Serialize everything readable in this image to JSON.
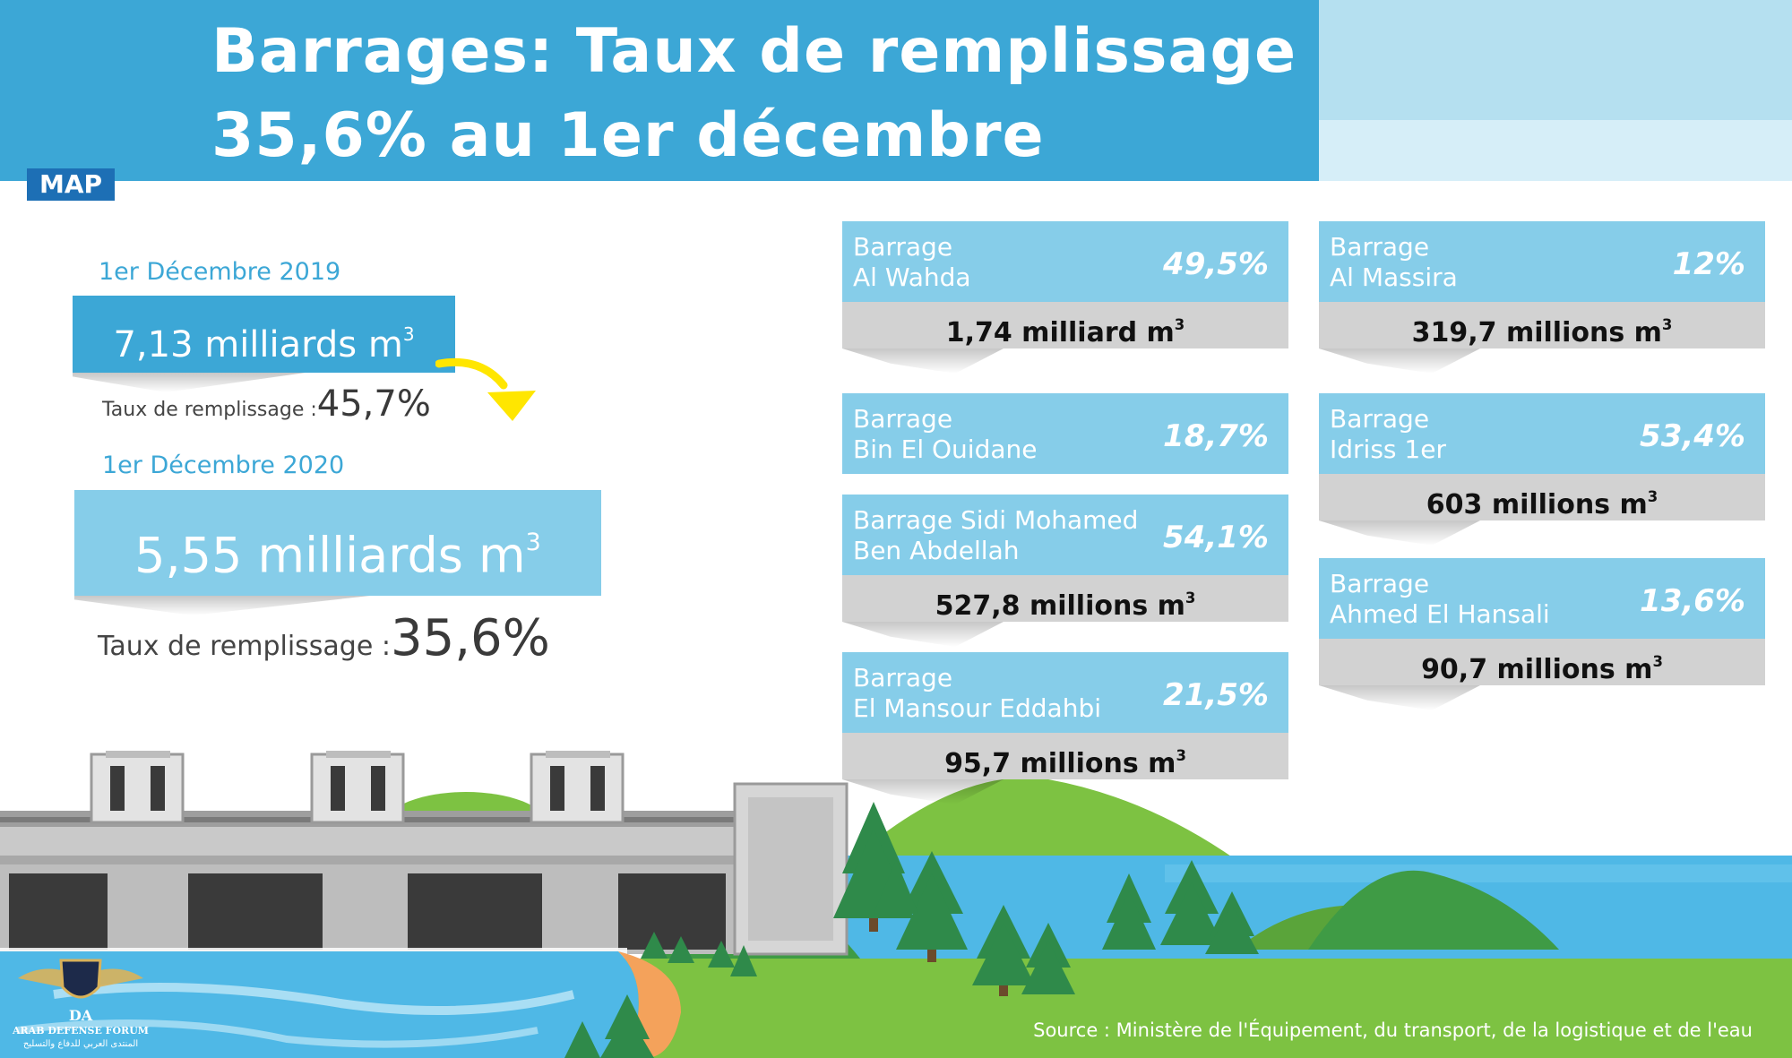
{
  "header": {
    "title_line1": "Barrages: Taux de remplissage",
    "title_line2": "35,6% au 1er décembre",
    "logo": "MAP"
  },
  "comparison": {
    "y2019": {
      "date": "1er Décembre 2019",
      "volume": "7,13 milliards m",
      "volume_exp": "3",
      "rate_label": "Taux de remplissage :",
      "rate_value": "45,7%"
    },
    "y2020": {
      "date": "1er Décembre 2020",
      "volume": "5,55 milliards m",
      "volume_exp": "3",
      "rate_label": "Taux de remplissage :",
      "rate_value": "35,6%"
    }
  },
  "dams": [
    {
      "line1": "Barrage",
      "line2": "Al Wahda",
      "rate": "49,5%",
      "volume": "1,74 milliard m",
      "exp": "3"
    },
    {
      "line1": "Barrage",
      "line2": "Al Massira",
      "rate": "12%",
      "volume": "319,7 millions m",
      "exp": "3"
    },
    {
      "line1": "Barrage",
      "line2": "Bin El Ouidane",
      "rate": "18,7%"
    },
    {
      "line1": "Barrage",
      "line2": "Idriss 1er",
      "rate": "53,4%",
      "volume": "603 millions m",
      "exp": "3"
    },
    {
      "line1": "Barrage Sidi Mohamed",
      "line2": "Ben Abdellah",
      "rate": "54,1%",
      "volume": "527,8 millions m",
      "exp": "3"
    },
    {
      "line1": "Barrage",
      "line2": "Ahmed El Hansali",
      "rate": "13,6%",
      "volume": "90,7 millions m",
      "exp": "3"
    },
    {
      "line1": "Barrage",
      "line2": "El Mansour Eddahbi",
      "rate": "21,5%",
      "volume": "95,7 millions m",
      "exp": "3"
    }
  ],
  "source": "Source : Ministère de l'Équipement, du transport, de la logistique et de l'eau",
  "watermark": {
    "initials": "DA",
    "name": "ARAB DEFENSE FORUM",
    "arabic": "المنتدى العربي للدفاع والتسليح"
  },
  "colors": {
    "header_blue": "#3ca7d6",
    "card_blue": "#86cde9",
    "card_grey": "#d2d2d2",
    "logo_blue": "#1d6fb5",
    "arrow_yellow": "#ffe600",
    "grass": "#7dc242",
    "water": "#4fb8e6"
  }
}
